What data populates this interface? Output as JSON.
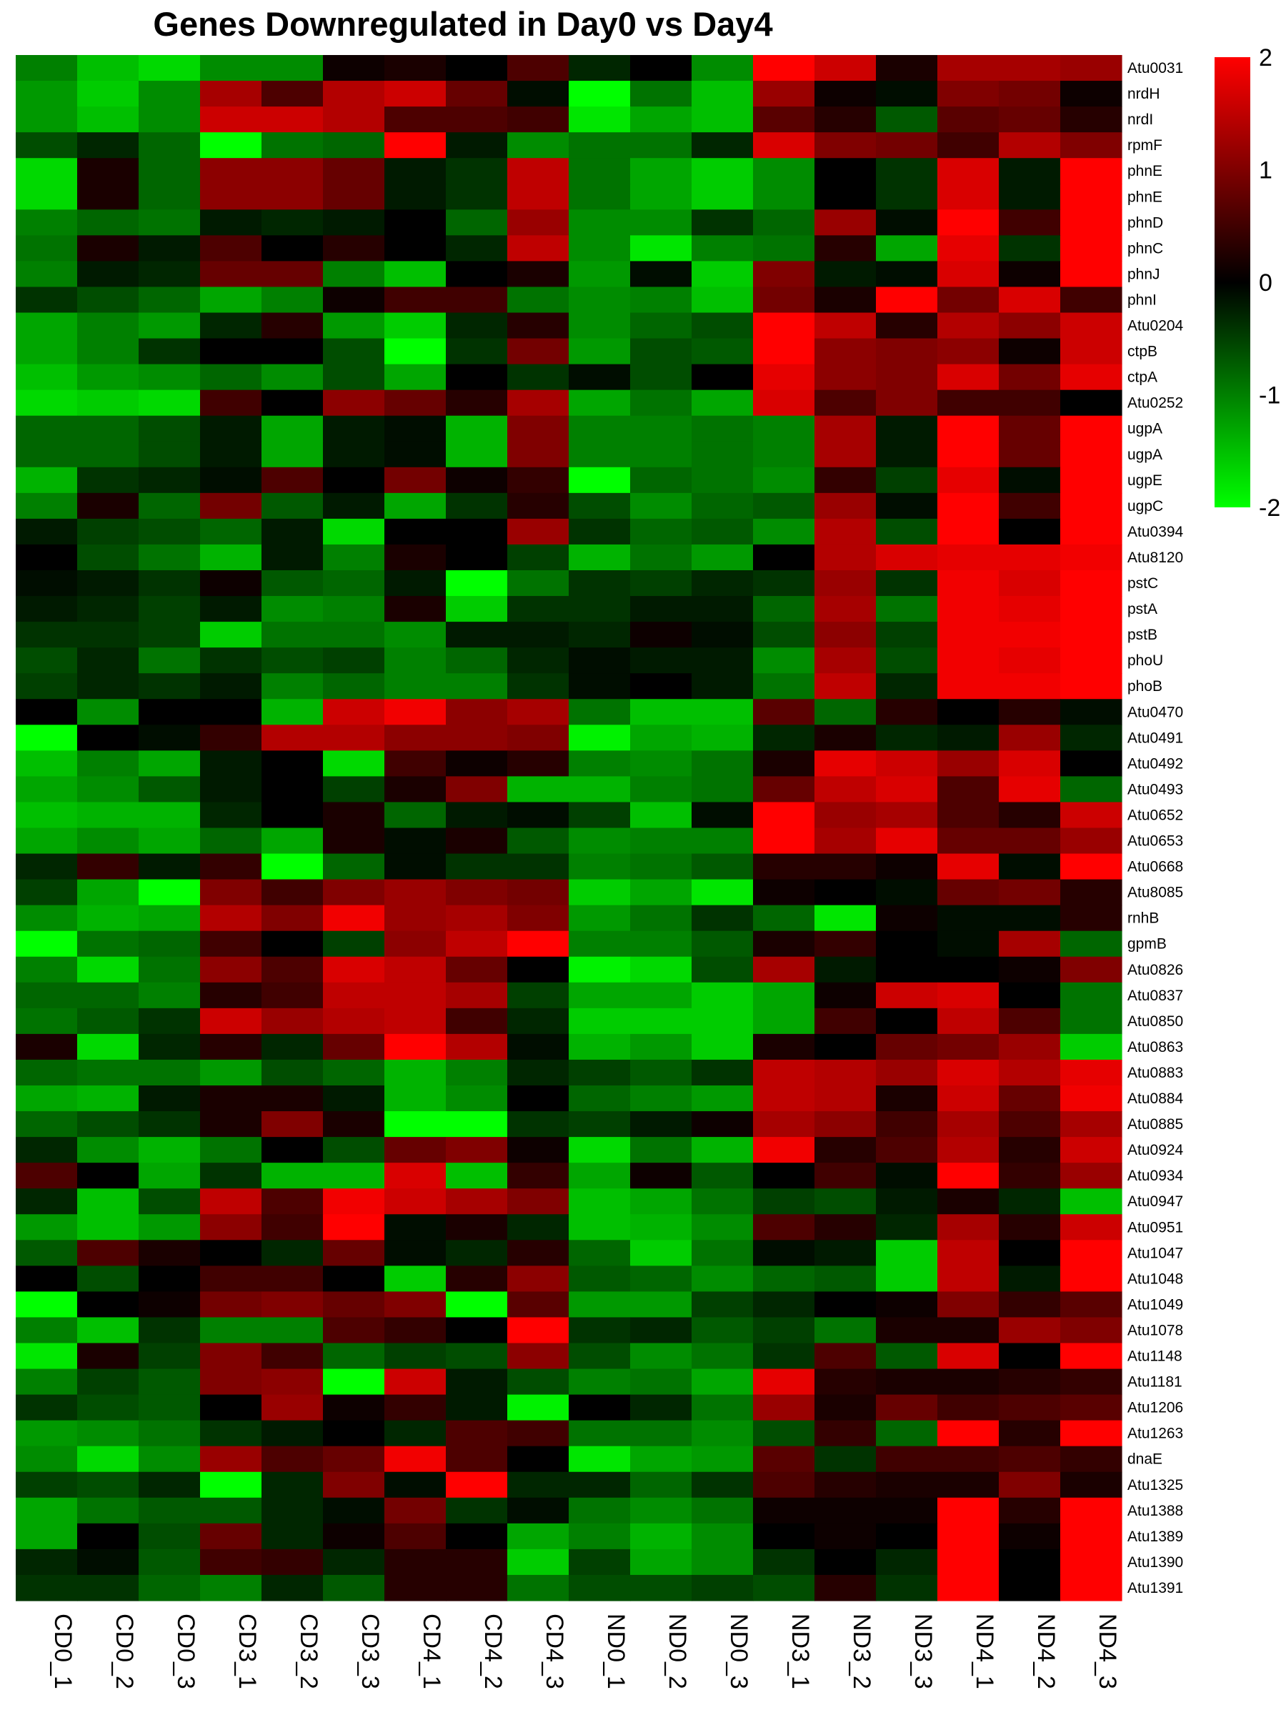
{
  "chart_data": {
    "type": "heatmap",
    "title": "Genes Downregulated in Day0 vs Day4",
    "columns": [
      "CD0_1",
      "CD0_2",
      "CD0_3",
      "CD3_1",
      "CD3_2",
      "CD3_3",
      "CD4_1",
      "CD4_2",
      "CD4_3",
      "ND0_1",
      "ND0_2",
      "ND0_3",
      "ND3_1",
      "ND3_2",
      "ND3_3",
      "ND4_1",
      "ND4_2",
      "ND4_3"
    ],
    "rows": [
      "Atu0031",
      "nrdH",
      "nrdI",
      "rpmF",
      "phnE",
      "phnE",
      "phnD",
      "phnC",
      "phnJ",
      "phnI",
      "Atu0204",
      "ctpB",
      "ctpA",
      "Atu0252",
      "ugpA",
      "ugpA",
      "ugpE",
      "ugpC",
      "Atu0394",
      "Atu8120",
      "pstC",
      "pstA",
      "pstB",
      "phoU",
      "phoB",
      "Atu0470",
      "Atu0491",
      "Atu0492",
      "Atu0493",
      "Atu0652",
      "Atu0653",
      "Atu0668",
      "Atu8085",
      "rnhB",
      "gpmB",
      "Atu0826",
      "Atu0837",
      "Atu0850",
      "Atu0863",
      "Atu0883",
      "Atu0884",
      "Atu0885",
      "Atu0924",
      "Atu0934",
      "Atu0947",
      "Atu0951",
      "Atu1047",
      "Atu1048",
      "Atu1049",
      "Atu1078",
      "Atu1148",
      "Atu1181",
      "Atu1206",
      "Atu1263",
      "dnaE",
      "Atu1325",
      "Atu1388",
      "Atu1389",
      "Atu1390",
      "Atu1391"
    ],
    "values": [
      [
        -1.0,
        -1.5,
        -1.7,
        -1.1,
        -1.1,
        0.1,
        0.2,
        0.0,
        0.6,
        -0.3,
        0.0,
        -1.1,
        2.0,
        1.6,
        0.2,
        1.3,
        1.3,
        1.2
      ],
      [
        -1.2,
        -1.6,
        -1.1,
        1.3,
        0.6,
        1.4,
        1.6,
        0.8,
        -0.1,
        -2.0,
        -0.9,
        -1.5,
        1.2,
        0.1,
        -0.1,
        1.0,
        0.9,
        0.1
      ],
      [
        -1.2,
        -1.5,
        -1.1,
        1.6,
        1.6,
        1.4,
        0.6,
        0.6,
        0.5,
        -1.8,
        -1.3,
        -1.5,
        0.7,
        0.3,
        -0.7,
        0.7,
        0.8,
        0.3
      ],
      [
        -0.6,
        -0.3,
        -0.8,
        -2.0,
        -0.9,
        -0.8,
        2.0,
        -0.2,
        -1.1,
        -0.9,
        -0.9,
        -0.3,
        1.7,
        1.0,
        0.9,
        0.5,
        1.4,
        1.0
      ],
      [
        -1.7,
        0.2,
        -0.8,
        1.1,
        1.1,
        0.8,
        -0.2,
        -0.4,
        1.5,
        -0.9,
        -1.3,
        -1.6,
        -1.1,
        0.0,
        -0.4,
        1.7,
        -0.2,
        2.0
      ],
      [
        -1.7,
        0.2,
        -0.8,
        1.1,
        1.1,
        0.8,
        -0.2,
        -0.4,
        1.5,
        -0.9,
        -1.3,
        -1.6,
        -1.1,
        0.0,
        -0.4,
        1.7,
        -0.2,
        2.0
      ],
      [
        -1.0,
        -0.8,
        -0.9,
        -0.2,
        -0.3,
        -0.2,
        0.0,
        -0.8,
        1.2,
        -1.1,
        -1.1,
        -0.4,
        -0.8,
        1.2,
        -0.1,
        2.0,
        0.5,
        2.0
      ],
      [
        -0.9,
        0.2,
        -0.2,
        0.6,
        0.0,
        0.3,
        0.0,
        -0.3,
        1.5,
        -1.1,
        -1.8,
        -1.0,
        -0.9,
        0.3,
        -1.3,
        1.8,
        -0.4,
        2.0
      ],
      [
        -1.0,
        -0.2,
        -0.3,
        0.8,
        0.8,
        -1.0,
        -1.5,
        0.0,
        0.2,
        -1.2,
        -0.1,
        -1.6,
        1.0,
        -0.2,
        -0.1,
        1.7,
        0.1,
        2.0
      ],
      [
        -0.4,
        -0.6,
        -0.8,
        -1.3,
        -1.0,
        0.1,
        0.5,
        0.5,
        -0.9,
        -1.1,
        -1.0,
        -1.5,
        0.9,
        0.2,
        2.0,
        0.9,
        1.7,
        0.5
      ],
      [
        -1.3,
        -1.0,
        -1.2,
        -0.3,
        0.3,
        -1.2,
        -1.6,
        -0.3,
        0.3,
        -1.1,
        -0.8,
        -0.6,
        2.0,
        1.5,
        0.3,
        1.4,
        1.1,
        1.6
      ],
      [
        -1.3,
        -1.0,
        -0.4,
        0.0,
        0.0,
        -0.6,
        -2.0,
        -0.4,
        0.9,
        -1.2,
        -0.6,
        -0.7,
        2.0,
        1.1,
        1.0,
        1.1,
        0.1,
        1.6
      ],
      [
        -1.5,
        -1.2,
        -1.1,
        -0.8,
        -1.1,
        -0.6,
        -1.3,
        0.0,
        -0.4,
        -0.1,
        -0.6,
        0.0,
        1.8,
        1.1,
        1.0,
        1.7,
        0.9,
        1.8
      ],
      [
        -1.7,
        -1.6,
        -1.7,
        0.5,
        0.0,
        1.1,
        0.8,
        0.3,
        1.3,
        -1.3,
        -0.9,
        -1.3,
        1.7,
        0.6,
        1.0,
        0.5,
        0.5,
        0.0
      ],
      [
        -0.8,
        -0.8,
        -0.6,
        -0.2,
        -1.3,
        -0.2,
        -0.1,
        -1.4,
        1.0,
        -1.0,
        -1.0,
        -0.9,
        -1.0,
        1.3,
        -0.2,
        2.0,
        0.8,
        2.0
      ],
      [
        -0.8,
        -0.8,
        -0.6,
        -0.2,
        -1.3,
        -0.2,
        -0.1,
        -1.4,
        1.0,
        -1.0,
        -1.0,
        -0.9,
        -1.0,
        1.3,
        -0.2,
        2.0,
        0.8,
        2.0
      ],
      [
        -1.4,
        -0.4,
        -0.3,
        -0.1,
        0.6,
        0.0,
        0.9,
        0.1,
        0.4,
        -2.0,
        -0.8,
        -0.9,
        -1.1,
        0.4,
        -0.5,
        1.8,
        -0.1,
        2.0
      ],
      [
        -1.0,
        0.2,
        -0.8,
        0.9,
        -0.7,
        -0.2,
        -1.3,
        -0.4,
        0.3,
        -0.6,
        -1.1,
        -0.8,
        -0.7,
        1.2,
        -0.1,
        2.0,
        0.5,
        2.0
      ],
      [
        -0.2,
        -0.5,
        -0.6,
        -0.8,
        -0.2,
        -1.7,
        0.0,
        0.0,
        1.2,
        -0.4,
        -0.8,
        -0.7,
        -1.1,
        1.4,
        -0.6,
        2.0,
        0.0,
        2.0
      ],
      [
        0.0,
        -0.6,
        -0.9,
        -1.4,
        -0.2,
        -1.0,
        0.2,
        0.0,
        -0.5,
        -1.4,
        -0.9,
        -1.2,
        0.0,
        1.4,
        1.7,
        1.8,
        1.8,
        1.9
      ],
      [
        -0.1,
        -0.2,
        -0.4,
        0.1,
        -0.7,
        -0.8,
        -0.2,
        -2.0,
        -0.9,
        -0.4,
        -0.5,
        -0.3,
        -0.4,
        1.2,
        -0.4,
        1.9,
        1.7,
        2.0
      ],
      [
        -0.2,
        -0.3,
        -0.5,
        -0.2,
        -1.1,
        -1.0,
        0.2,
        -1.6,
        -0.4,
        -0.4,
        -0.2,
        -0.2,
        -0.8,
        1.3,
        -0.9,
        1.9,
        1.8,
        2.0
      ],
      [
        -0.4,
        -0.4,
        -0.5,
        -1.6,
        -0.9,
        -0.9,
        -1.1,
        -0.2,
        -0.2,
        -0.3,
        0.1,
        -0.1,
        -0.6,
        1.1,
        -0.5,
        1.9,
        1.9,
        2.0
      ],
      [
        -0.6,
        -0.3,
        -0.9,
        -0.4,
        -0.6,
        -0.5,
        -1.0,
        -0.8,
        -0.3,
        -0.1,
        -0.2,
        -0.2,
        -1.1,
        1.3,
        -0.6,
        1.9,
        1.8,
        2.0
      ],
      [
        -0.5,
        -0.3,
        -0.4,
        -0.2,
        -1.0,
        -0.8,
        -1.0,
        -1.0,
        -0.4,
        -0.1,
        0.0,
        -0.2,
        -0.9,
        1.5,
        -0.3,
        1.9,
        1.9,
        2.0
      ],
      [
        0.0,
        -1.1,
        0.0,
        0.0,
        -1.4,
        1.6,
        1.9,
        1.1,
        1.3,
        -0.9,
        -1.5,
        -1.5,
        0.7,
        -0.8,
        0.3,
        0.0,
        0.3,
        -0.1
      ],
      [
        -2.0,
        0.0,
        -0.1,
        0.4,
        1.4,
        1.4,
        1.1,
        1.1,
        1.0,
        -1.9,
        -1.3,
        -1.4,
        -0.3,
        0.2,
        -0.3,
        -0.2,
        1.2,
        -0.3
      ],
      [
        -1.5,
        -1.0,
        -1.3,
        -0.2,
        0.0,
        -1.7,
        0.5,
        0.1,
        0.3,
        -1.0,
        -1.1,
        -0.9,
        0.2,
        1.8,
        1.6,
        1.2,
        1.7,
        0.0
      ],
      [
        -1.3,
        -1.1,
        -0.7,
        -0.2,
        0.0,
        -0.5,
        0.2,
        1.0,
        -1.4,
        -1.4,
        -1.0,
        -0.9,
        0.8,
        1.5,
        1.7,
        0.6,
        1.8,
        -0.8
      ],
      [
        -1.5,
        -1.4,
        -1.4,
        -0.3,
        0.0,
        0.2,
        -0.8,
        -0.2,
        -0.1,
        -0.5,
        -1.5,
        -0.1,
        2.0,
        1.2,
        1.3,
        0.6,
        0.3,
        1.6
      ],
      [
        -1.3,
        -1.1,
        -1.3,
        -0.8,
        -1.3,
        0.2,
        -0.1,
        0.2,
        -0.7,
        -1.1,
        -1.0,
        -1.0,
        2.0,
        1.3,
        1.8,
        0.8,
        0.8,
        1.2
      ],
      [
        -0.3,
        0.4,
        -0.2,
        0.4,
        -2.0,
        -0.8,
        -0.1,
        -0.4,
        -0.4,
        -1.0,
        -0.9,
        -0.7,
        0.3,
        0.3,
        0.1,
        1.8,
        -0.1,
        2.0
      ],
      [
        -0.5,
        -1.3,
        -2.0,
        1.0,
        0.5,
        1.0,
        1.2,
        1.0,
        0.9,
        -1.6,
        -1.3,
        -1.8,
        0.1,
        0.0,
        -0.1,
        0.8,
        0.9,
        0.3
      ],
      [
        -1.1,
        -1.4,
        -1.3,
        1.4,
        1.0,
        1.9,
        1.2,
        1.3,
        1.0,
        -1.2,
        -0.9,
        -0.4,
        -0.8,
        -1.8,
        0.1,
        -0.1,
        -0.1,
        0.3
      ],
      [
        -2.0,
        -0.9,
        -0.8,
        0.5,
        0.0,
        -0.5,
        1.1,
        1.5,
        2.0,
        -1.0,
        -1.0,
        -0.7,
        0.2,
        0.4,
        0.0,
        -0.1,
        1.3,
        -0.8
      ],
      [
        -1.0,
        -1.7,
        -0.9,
        1.1,
        0.6,
        1.7,
        1.5,
        0.8,
        0.0,
        -1.9,
        -1.7,
        -0.6,
        1.3,
        -0.2,
        0.0,
        0.0,
        0.1,
        1.0
      ],
      [
        -0.8,
        -0.8,
        -1.0,
        0.3,
        0.5,
        1.5,
        1.5,
        1.3,
        -0.5,
        -1.3,
        -1.3,
        -1.6,
        -1.3,
        0.1,
        1.6,
        1.7,
        0.0,
        -0.9
      ],
      [
        -0.9,
        -0.7,
        -0.4,
        1.6,
        1.2,
        1.4,
        1.5,
        0.5,
        -0.3,
        -1.6,
        -1.6,
        -1.6,
        -1.3,
        0.5,
        0.0,
        1.5,
        0.6,
        -0.9
      ],
      [
        0.2,
        -1.7,
        -0.3,
        0.3,
        -0.3,
        0.8,
        2.0,
        1.4,
        -0.1,
        -1.4,
        -1.2,
        -1.6,
        0.2,
        0.0,
        0.8,
        0.9,
        1.2,
        -1.6
      ],
      [
        -0.8,
        -0.9,
        -0.9,
        -1.2,
        -0.6,
        -0.8,
        -1.4,
        -1.0,
        -0.3,
        -0.5,
        -0.7,
        -0.4,
        1.5,
        1.4,
        1.2,
        1.7,
        1.4,
        1.8
      ],
      [
        -1.3,
        -1.4,
        -0.2,
        0.2,
        0.2,
        -0.2,
        -1.4,
        -1.1,
        0.0,
        -0.8,
        -1.0,
        -1.2,
        1.5,
        1.4,
        0.2,
        1.6,
        0.8,
        1.9
      ],
      [
        -0.8,
        -0.6,
        -0.4,
        0.2,
        1.0,
        0.2,
        -2.0,
        -2.0,
        -0.4,
        -0.5,
        -0.2,
        0.1,
        1.3,
        1.1,
        0.5,
        1.3,
        0.6,
        1.3
      ],
      [
        -0.3,
        -1.1,
        -1.4,
        -0.9,
        0.0,
        -0.6,
        0.8,
        1.0,
        0.1,
        -1.7,
        -0.9,
        -1.4,
        1.9,
        0.3,
        0.6,
        1.4,
        0.3,
        1.6
      ],
      [
        0.6,
        0.0,
        -1.3,
        -0.4,
        -1.4,
        -1.4,
        1.7,
        -1.5,
        0.4,
        -1.3,
        0.1,
        -0.7,
        0.0,
        0.5,
        -0.1,
        2.0,
        0.4,
        1.2
      ],
      [
        -0.3,
        -1.5,
        -0.6,
        1.5,
        0.6,
        1.9,
        1.6,
        1.3,
        1.0,
        -1.5,
        -1.3,
        -0.9,
        -0.5,
        -0.6,
        -0.2,
        0.2,
        -0.3,
        -1.5
      ],
      [
        -1.2,
        -1.5,
        -1.2,
        1.1,
        0.5,
        2.0,
        -0.1,
        0.2,
        -0.3,
        -1.5,
        -1.4,
        -1.1,
        0.6,
        0.3,
        -0.3,
        1.3,
        0.3,
        1.6
      ],
      [
        -0.7,
        0.6,
        0.2,
        0.0,
        -0.3,
        0.8,
        -0.1,
        -0.3,
        0.3,
        -0.8,
        -1.6,
        -0.9,
        -0.1,
        -0.2,
        -1.6,
        1.5,
        0.0,
        2.0
      ],
      [
        0.0,
        -0.6,
        0.0,
        0.5,
        0.5,
        0.0,
        -1.6,
        0.3,
        1.1,
        -0.7,
        -0.8,
        -1.1,
        -0.8,
        -0.7,
        -1.6,
        1.5,
        -0.2,
        2.0
      ],
      [
        -2.0,
        0.0,
        0.1,
        0.9,
        1.0,
        0.8,
        1.0,
        -2.0,
        0.7,
        -1.2,
        -1.2,
        -0.5,
        -0.3,
        0.0,
        0.1,
        1.0,
        0.4,
        0.7
      ],
      [
        -1.0,
        -1.5,
        -0.4,
        -1.0,
        -1.0,
        0.6,
        0.4,
        0.0,
        2.0,
        -0.4,
        -0.3,
        -0.7,
        -0.5,
        -0.9,
        0.2,
        0.2,
        1.2,
        1.0
      ],
      [
        -1.8,
        0.2,
        -0.5,
        1.0,
        0.5,
        -0.8,
        -0.5,
        -0.6,
        1.1,
        -0.6,
        -1.1,
        -0.9,
        -0.4,
        0.6,
        -0.7,
        1.7,
        0.0,
        2.0
      ],
      [
        -1.0,
        -0.5,
        -0.7,
        1.0,
        1.1,
        -2.0,
        1.6,
        -0.2,
        -0.6,
        -1.0,
        -0.9,
        -1.3,
        1.8,
        0.3,
        0.2,
        0.2,
        0.3,
        0.4
      ],
      [
        -0.4,
        -0.6,
        -0.7,
        0.0,
        1.2,
        0.1,
        0.4,
        -0.2,
        -1.9,
        0.0,
        -0.3,
        -0.9,
        1.2,
        0.2,
        0.8,
        0.5,
        0.6,
        0.7
      ],
      [
        -1.2,
        -1.1,
        -0.9,
        -0.4,
        -0.2,
        0.0,
        -0.3,
        0.6,
        0.5,
        -0.9,
        -0.9,
        -1.1,
        -0.6,
        0.4,
        -0.8,
        2.0,
        0.3,
        2.0
      ],
      [
        -1.1,
        -1.7,
        -1.1,
        1.2,
        0.6,
        0.8,
        1.9,
        0.6,
        0.0,
        -1.8,
        -1.3,
        -1.2,
        0.7,
        -0.4,
        0.5,
        0.5,
        0.6,
        0.4
      ],
      [
        -0.5,
        -0.6,
        -0.3,
        -2.0,
        -0.3,
        1.0,
        -0.1,
        2.0,
        -0.3,
        -0.3,
        -0.8,
        -0.4,
        0.6,
        0.3,
        0.2,
        0.2,
        1.0,
        0.2
      ],
      [
        -1.3,
        -0.9,
        -0.7,
        -0.7,
        -0.3,
        -0.1,
        0.9,
        -0.4,
        -0.1,
        -0.9,
        -1.1,
        -0.9,
        0.1,
        0.1,
        0.1,
        2.0,
        0.3,
        2.0
      ],
      [
        -1.3,
        0.0,
        -0.6,
        0.8,
        -0.3,
        0.1,
        0.6,
        0.0,
        -1.3,
        -1.0,
        -1.4,
        -1.1,
        0.0,
        0.1,
        0.0,
        2.0,
        0.1,
        2.0
      ],
      [
        -0.3,
        -0.1,
        -0.7,
        0.5,
        0.4,
        -0.3,
        0.3,
        0.3,
        -1.6,
        -0.5,
        -1.3,
        -1.1,
        -0.4,
        0.0,
        -0.3,
        2.0,
        0.0,
        2.0
      ],
      [
        -0.4,
        -0.4,
        -0.8,
        -1.0,
        -0.3,
        -0.7,
        0.3,
        0.3,
        -0.9,
        -0.6,
        -0.6,
        -0.5,
        -0.6,
        0.3,
        -0.4,
        2.0,
        0.0,
        2.0
      ]
    ],
    "value_range": [
      -2,
      2
    ],
    "colors": {
      "low": "#00ff00",
      "mid": "#000000",
      "high": "#ff0000"
    },
    "legend": {
      "position": "right",
      "ticks": [
        "2",
        "1",
        "0",
        "-1",
        "-2"
      ]
    },
    "xlabel": "",
    "ylabel": ""
  }
}
